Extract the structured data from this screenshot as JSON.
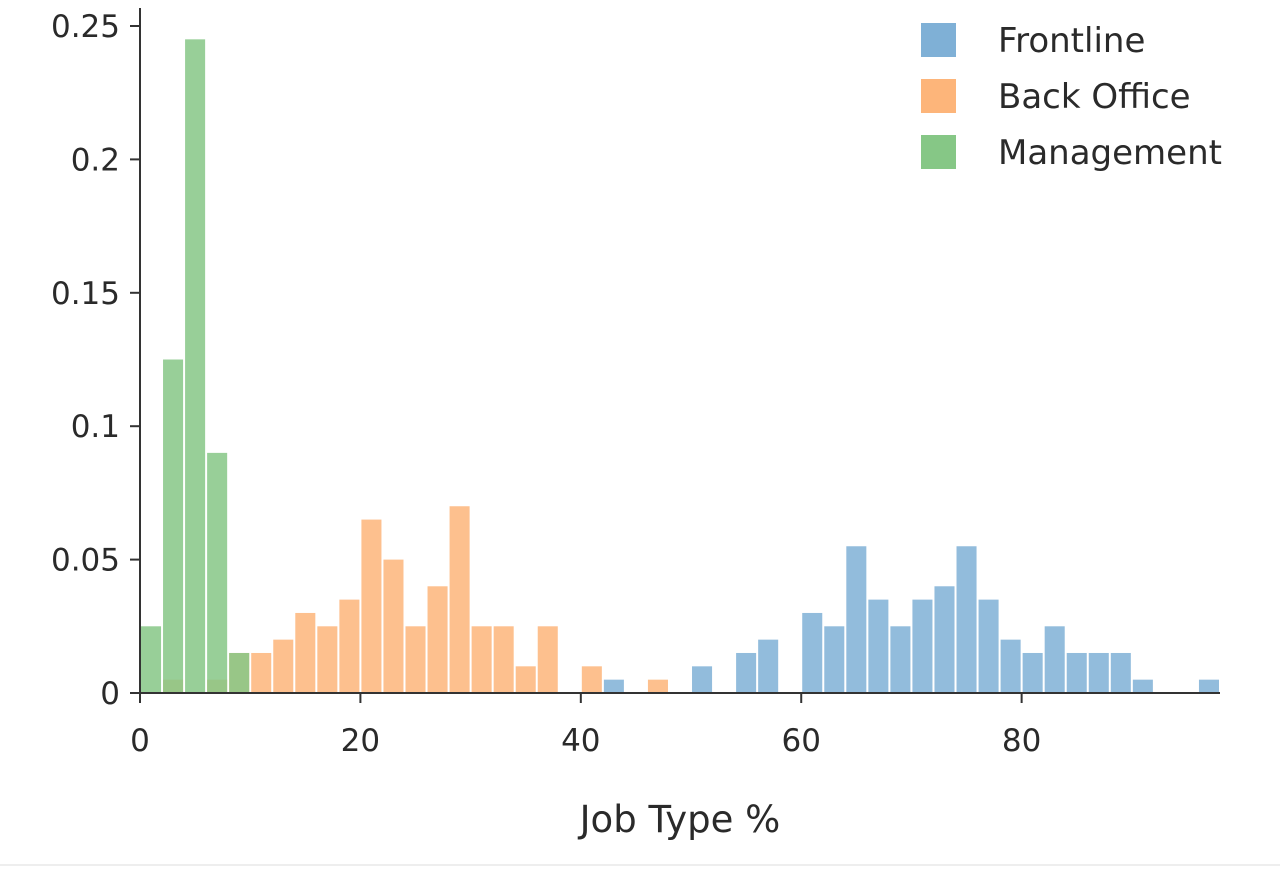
{
  "chart_data": {
    "type": "bar",
    "title": "",
    "xlabel": "Job Type %",
    "ylabel": "",
    "xlim": [
      0,
      98
    ],
    "ylim": [
      0,
      0.25
    ],
    "xticks": [
      "0",
      "20",
      "40",
      "60",
      "80"
    ],
    "yticks": [
      "0",
      "0.05",
      "0.1",
      "0.15",
      "0.2",
      "0.25"
    ],
    "bin_width": 2,
    "grid": false,
    "legend_position": "top-right",
    "series": [
      {
        "name": "Frontline",
        "color": "#7fb0d6",
        "bins": [
          {
            "x0": 42,
            "y": 0.005
          },
          {
            "x0": 50,
            "y": 0.01
          },
          {
            "x0": 54,
            "y": 0.015
          },
          {
            "x0": 56,
            "y": 0.02
          },
          {
            "x0": 60,
            "y": 0.03
          },
          {
            "x0": 62,
            "y": 0.025
          },
          {
            "x0": 64,
            "y": 0.055
          },
          {
            "x0": 66,
            "y": 0.035
          },
          {
            "x0": 68,
            "y": 0.025
          },
          {
            "x0": 70,
            "y": 0.035
          },
          {
            "x0": 72,
            "y": 0.04
          },
          {
            "x0": 74,
            "y": 0.055
          },
          {
            "x0": 76,
            "y": 0.035
          },
          {
            "x0": 78,
            "y": 0.02
          },
          {
            "x0": 80,
            "y": 0.015
          },
          {
            "x0": 82,
            "y": 0.025
          },
          {
            "x0": 84,
            "y": 0.015
          },
          {
            "x0": 86,
            "y": 0.015
          },
          {
            "x0": 88,
            "y": 0.015
          },
          {
            "x0": 90,
            "y": 0.005
          },
          {
            "x0": 96,
            "y": 0.005
          }
        ]
      },
      {
        "name": "Back Office",
        "color": "#fdb57a",
        "bins": [
          {
            "x0": 2,
            "y": 0.005
          },
          {
            "x0": 6,
            "y": 0.005
          },
          {
            "x0": 8,
            "y": 0.015
          },
          {
            "x0": 10,
            "y": 0.015
          },
          {
            "x0": 12,
            "y": 0.02
          },
          {
            "x0": 14,
            "y": 0.03
          },
          {
            "x0": 16,
            "y": 0.025
          },
          {
            "x0": 18,
            "y": 0.035
          },
          {
            "x0": 20,
            "y": 0.065
          },
          {
            "x0": 22,
            "y": 0.05
          },
          {
            "x0": 24,
            "y": 0.025
          },
          {
            "x0": 26,
            "y": 0.04
          },
          {
            "x0": 28,
            "y": 0.07
          },
          {
            "x0": 30,
            "y": 0.025
          },
          {
            "x0": 32,
            "y": 0.025
          },
          {
            "x0": 34,
            "y": 0.01
          },
          {
            "x0": 36,
            "y": 0.025
          },
          {
            "x0": 40,
            "y": 0.01
          },
          {
            "x0": 46,
            "y": 0.005
          }
        ]
      },
      {
        "name": "Management",
        "color": "#86c786",
        "bins": [
          {
            "x0": 0,
            "y": 0.025
          },
          {
            "x0": 2,
            "y": 0.125
          },
          {
            "x0": 4,
            "y": 0.245
          },
          {
            "x0": 6,
            "y": 0.09
          },
          {
            "x0": 8,
            "y": 0.015
          }
        ]
      }
    ]
  }
}
